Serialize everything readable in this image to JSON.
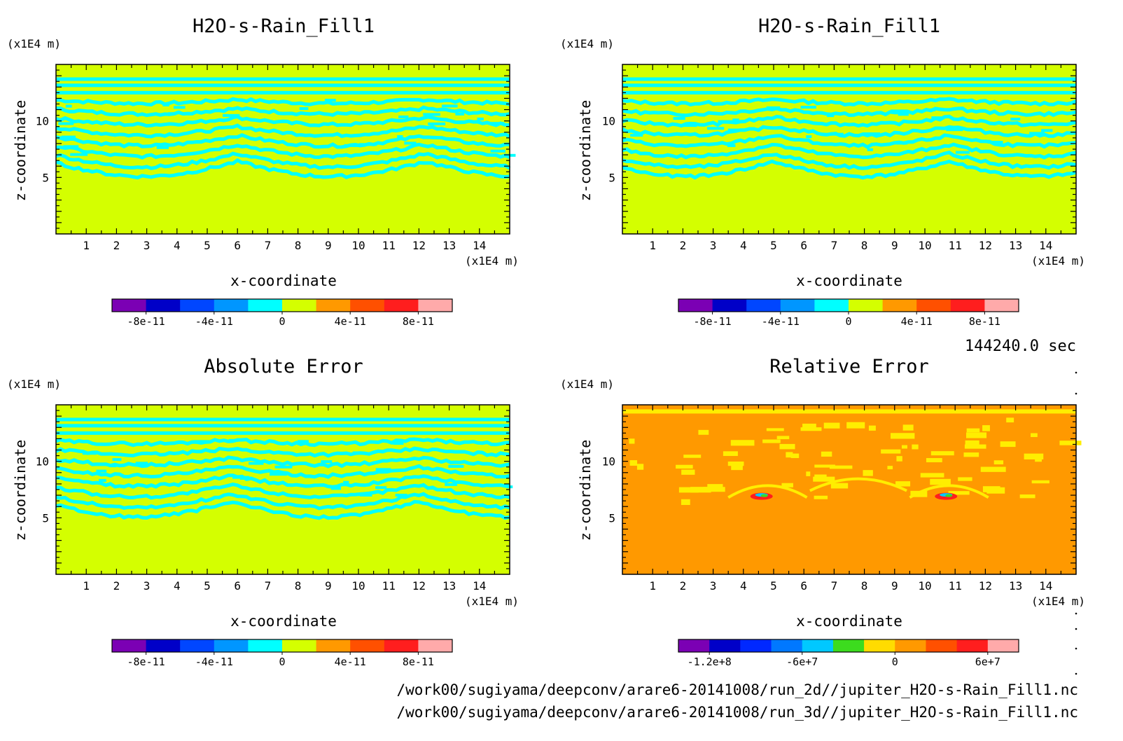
{
  "colors": {
    "background": "#d4ff00",
    "contour": "#00ffff",
    "relative_background": "#ff9900",
    "relative_contour": "#ffee00",
    "frame": "#000000"
  },
  "chart_data": [
    {
      "type": "heatmap",
      "title": "H2O-s-Rain_Fill1",
      "xlabel": "x-coordinate",
      "ylabel": "z-coordinate",
      "x_unit": "(x1E4 m)",
      "y_unit": "(x1E4 m)",
      "xlim": [
        0,
        15
      ],
      "ylim": [
        0,
        15
      ],
      "xticks": [
        "1",
        "2",
        "3",
        "4",
        "5",
        "6",
        "7",
        "8",
        "9",
        "10",
        "11",
        "12",
        "13",
        "14"
      ],
      "yticks": [
        "5",
        "10"
      ],
      "field_pattern": "wavy-bands-a",
      "colorbar": {
        "colors": [
          "#7b00b4",
          "#0000c8",
          "#0046ff",
          "#0096ff",
          "#00ffff",
          "#d4ff00",
          "#ff9900",
          "#ff5000",
          "#ff1e1e",
          "#ffaaaa"
        ],
        "labels": [
          "-8e-11",
          "-4e-11",
          "0",
          "4e-11",
          "8e-11"
        ]
      }
    },
    {
      "type": "heatmap",
      "title": "H2O-s-Rain_Fill1",
      "xlabel": "x-coordinate",
      "ylabel": "z-coordinate",
      "x_unit": "(x1E4 m)",
      "y_unit": "(x1E4 m)",
      "xlim": [
        0,
        15
      ],
      "ylim": [
        0,
        15
      ],
      "xticks": [
        "1",
        "2",
        "3",
        "4",
        "5",
        "6",
        "7",
        "8",
        "9",
        "10",
        "11",
        "12",
        "13",
        "14"
      ],
      "yticks": [
        "5",
        "10"
      ],
      "field_pattern": "wavy-bands-b",
      "colorbar": {
        "colors": [
          "#7b00b4",
          "#0000c8",
          "#0046ff",
          "#0096ff",
          "#00ffff",
          "#d4ff00",
          "#ff9900",
          "#ff5000",
          "#ff1e1e",
          "#ffaaaa"
        ],
        "labels": [
          "-8e-11",
          "-4e-11",
          "0",
          "4e-11",
          "8e-11"
        ]
      }
    },
    {
      "type": "heatmap",
      "title": "Absolute Error",
      "xlabel": "x-coordinate",
      "ylabel": "z-coordinate",
      "x_unit": "(x1E4 m)",
      "y_unit": "(x1E4 m)",
      "xlim": [
        0,
        15
      ],
      "ylim": [
        0,
        15
      ],
      "xticks": [
        "1",
        "2",
        "3",
        "4",
        "5",
        "6",
        "7",
        "8",
        "9",
        "10",
        "11",
        "12",
        "13",
        "14"
      ],
      "yticks": [
        "5",
        "10"
      ],
      "field_pattern": "wavy-bands-c",
      "colorbar": {
        "colors": [
          "#7b00b4",
          "#0000c8",
          "#0046ff",
          "#0096ff",
          "#00ffff",
          "#d4ff00",
          "#ff9900",
          "#ff5000",
          "#ff1e1e",
          "#ffaaaa"
        ],
        "labels": [
          "-8e-11",
          "-4e-11",
          "0",
          "4e-11",
          "8e-11"
        ]
      }
    },
    {
      "type": "heatmap",
      "title": "Relative Error",
      "xlabel": "x-coordinate",
      "ylabel": "z-coordinate",
      "x_unit": "(x1E4 m)",
      "y_unit": "(x1E4 m)",
      "xlim": [
        0,
        15
      ],
      "ylim": [
        0,
        15
      ],
      "xticks": [
        "1",
        "2",
        "3",
        "4",
        "5",
        "6",
        "7",
        "8",
        "9",
        "10",
        "11",
        "12",
        "13",
        "14"
      ],
      "yticks": [
        "5",
        "10"
      ],
      "field_pattern": "relative-patches",
      "colorbar": {
        "colors": [
          "#7b00b4",
          "#0000c8",
          "#0028ff",
          "#0078ff",
          "#00c8ff",
          "#3cdc1e",
          "#ffdc00",
          "#ff9900",
          "#ff5000",
          "#ff1e1e",
          "#ffaaaa"
        ],
        "labels": [
          "-1.2e+8",
          "-6e+7",
          "0",
          "6e+7"
        ]
      }
    }
  ],
  "time_label": "144240.0 sec",
  "file_paths": [
    "/work00/sugiyama/deepconv/arare6-20141008/run_2d//jupiter_H2O-s-Rain_Fill1.nc",
    "/work00/sugiyama/deepconv/arare6-20141008/run_3d//jupiter_H2O-s-Rain_Fill1.nc"
  ]
}
